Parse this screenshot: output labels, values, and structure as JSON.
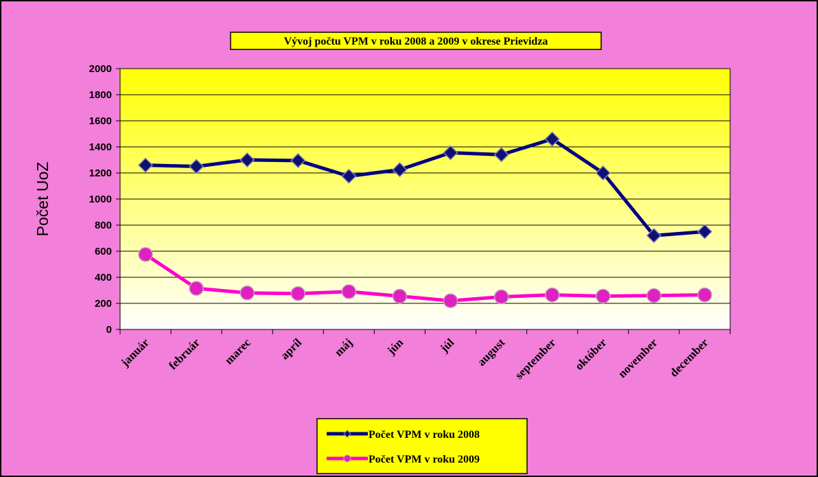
{
  "chart_data": {
    "type": "line",
    "title": "Vývoj počtu VPM v roku 2008 a 2009  v okrese Prievidza",
    "y_label": "Počet UoZ",
    "categories": [
      "január",
      "február",
      "marec",
      "apríl",
      "máj",
      "jún",
      "júl",
      "august",
      "september",
      "október",
      "november",
      "december"
    ],
    "series": [
      {
        "name": "Počet VPM v roku 2008",
        "color": "#000080",
        "marker": "diamond",
        "values": [
          1260,
          1250,
          1300,
          1295,
          1175,
          1225,
          1355,
          1340,
          1460,
          1200,
          720,
          750
        ]
      },
      {
        "name": "Počet VPM v roku 2009",
        "color": "#ff00cc",
        "marker": "circle",
        "values": [
          575,
          315,
          280,
          275,
          290,
          255,
          220,
          250,
          265,
          255,
          260,
          265
        ]
      }
    ],
    "ylim": [
      0,
      2000
    ],
    "yticks": [
      0,
      200,
      400,
      600,
      800,
      1000,
      1200,
      1400,
      1600,
      1800,
      2000
    ],
    "grid": true,
    "legend": "bottom"
  }
}
